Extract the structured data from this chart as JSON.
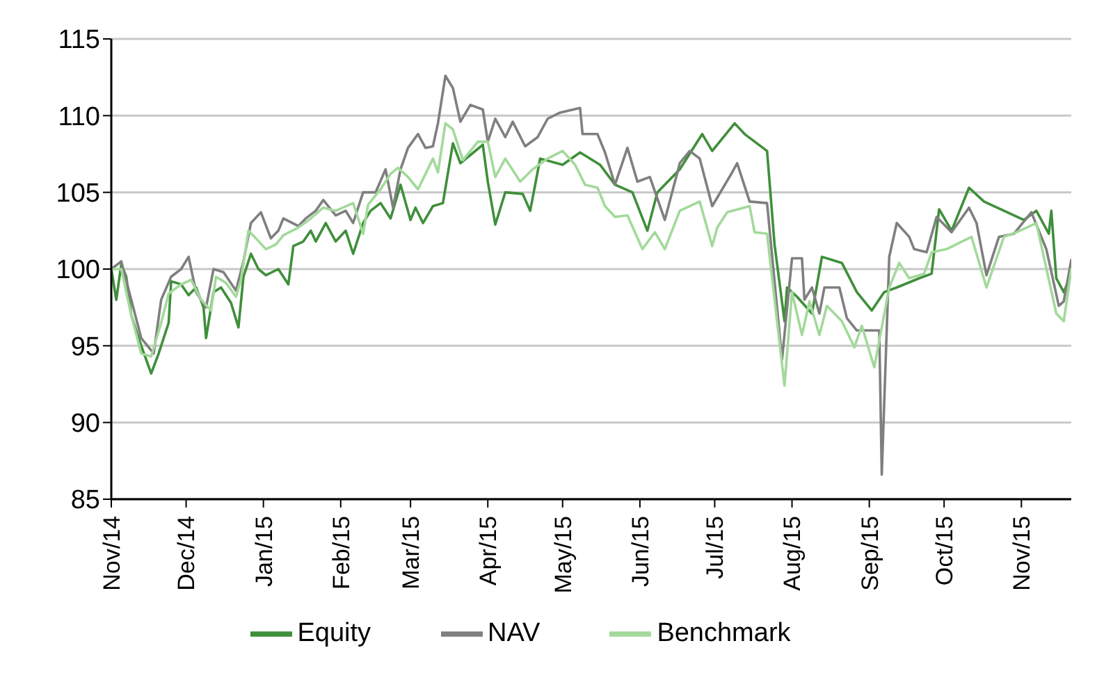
{
  "chart_data": {
    "type": "line",
    "xlim": [
      "2014-11-01",
      "2015-11-21"
    ],
    "xticks": [
      {
        "value": "2014-11-01",
        "label": "Nov/14"
      },
      {
        "value": "2014-12-01",
        "label": "Dec/14"
      },
      {
        "value": "2015-01-01",
        "label": "Jan/15"
      },
      {
        "value": "2015-02-01",
        "label": "Feb/15"
      },
      {
        "value": "2015-03-01",
        "label": "Mar/15"
      },
      {
        "value": "2015-04-01",
        "label": "Apr/15"
      },
      {
        "value": "2015-05-01",
        "label": "May/15"
      },
      {
        "value": "2015-06-01",
        "label": "Jun/15"
      },
      {
        "value": "2015-07-01",
        "label": "Jul/15"
      },
      {
        "value": "2015-08-01",
        "label": "Aug/15"
      },
      {
        "value": "2015-09-01",
        "label": "Sep/15"
      },
      {
        "value": "2015-10-01",
        "label": "Oct/15"
      },
      {
        "value": "2015-11-01",
        "label": "Nov/15"
      }
    ],
    "ylim": [
      85,
      115
    ],
    "yticks": [
      85,
      90,
      95,
      100,
      105,
      110,
      115
    ],
    "grid": "y",
    "legend": "bottom",
    "series": [
      {
        "name": "Equity",
        "color": "#3f8f3a",
        "x": [
          "2014-11-01",
          "2014-11-03",
          "2014-11-05",
          "2014-11-07",
          "2014-11-09",
          "2014-11-13",
          "2014-11-17",
          "2014-11-20",
          "2014-11-24",
          "2014-11-25",
          "2014-11-29",
          "2014-12-02",
          "2014-12-05",
          "2014-12-08",
          "2014-12-09",
          "2014-12-12",
          "2014-12-15",
          "2014-12-19",
          "2014-12-22",
          "2014-12-24",
          "2014-12-27",
          "2014-12-30",
          "2015-01-02",
          "2015-01-07",
          "2015-01-11",
          "2015-01-13",
          "2015-01-17",
          "2015-01-20",
          "2015-01-22",
          "2015-01-26",
          "2015-01-30",
          "2015-02-03",
          "2015-02-06",
          "2015-02-10",
          "2015-02-13",
          "2015-02-17",
          "2015-02-21",
          "2015-02-25",
          "2015-03-01",
          "2015-03-03",
          "2015-03-06",
          "2015-03-10",
          "2015-03-14",
          "2015-03-18",
          "2015-03-21",
          "2015-03-30",
          "2015-04-01",
          "2015-04-04",
          "2015-04-08",
          "2015-04-15",
          "2015-04-18",
          "2015-04-22",
          "2015-05-01",
          "2015-05-08",
          "2015-05-16",
          "2015-05-22",
          "2015-05-29",
          "2015-06-04",
          "2015-06-08",
          "2015-06-17",
          "2015-06-26",
          "2015-06-30",
          "2015-07-09",
          "2015-07-13",
          "2015-07-22",
          "2015-07-25",
          "2015-07-29",
          "2015-07-30",
          "2015-08-03",
          "2015-08-09",
          "2015-08-13",
          "2015-08-21",
          "2015-08-27",
          "2015-09-02",
          "2015-09-07",
          "2015-09-12",
          "2015-09-21",
          "2015-09-26",
          "2015-09-29",
          "2015-10-04",
          "2015-10-11",
          "2015-10-17",
          "2015-10-25",
          "2015-11-02",
          "2015-11-07",
          "2015-11-12",
          "2015-11-13",
          "2015-11-15",
          "2015-11-18",
          "2015-11-21"
        ],
        "values": [
          100,
          98,
          100.3,
          99.5,
          97,
          95,
          93.2,
          94.5,
          96.5,
          99.2,
          99,
          98.3,
          98.8,
          97.5,
          95.5,
          98.5,
          98.8,
          97.8,
          96.2,
          99.5,
          101,
          100,
          99.6,
          100,
          99,
          101.5,
          101.8,
          102.5,
          101.8,
          103,
          101.8,
          102.5,
          101,
          103,
          103.8,
          104.3,
          103.3,
          105.5,
          103.2,
          104,
          103,
          104.1,
          104.3,
          108.2,
          106.9,
          108.1,
          105.7,
          102.9,
          105,
          104.9,
          103.8,
          107.2,
          106.8,
          107.6,
          106.8,
          105.5,
          105,
          102.5,
          105,
          106.5,
          108.8,
          107.7,
          109.5,
          108.8,
          107.7,
          101.6,
          96.6,
          98.8,
          98.2,
          97.1,
          100.8,
          100.4,
          98.5,
          97.3,
          98.5,
          98.8,
          99.4,
          99.7,
          103.9,
          102.5,
          105.3,
          104.4,
          103.8,
          103.2,
          103.8,
          102.3,
          103.8,
          99.4,
          98.5,
          99.7
        ]
      },
      {
        "name": "NAV",
        "color": "#7f7f7f",
        "x": [
          "2014-11-01",
          "2014-11-05",
          "2014-11-13",
          "2014-11-18",
          "2014-11-21",
          "2014-11-25",
          "2014-11-29",
          "2014-12-02",
          "2014-12-05",
          "2014-12-09",
          "2014-12-12",
          "2014-12-16",
          "2014-12-21",
          "2014-12-24",
          "2014-12-27",
          "2014-12-31",
          "2015-01-04",
          "2015-01-07",
          "2015-01-09",
          "2015-01-15",
          "2015-01-18",
          "2015-01-22",
          "2015-01-25",
          "2015-01-30",
          "2015-02-03",
          "2015-02-06",
          "2015-02-10",
          "2015-02-15",
          "2015-02-19",
          "2015-02-22",
          "2015-02-25",
          "2015-02-28",
          "2015-03-04",
          "2015-03-07",
          "2015-03-10",
          "2015-03-12",
          "2015-03-15",
          "2015-03-18",
          "2015-03-21",
          "2015-03-25",
          "2015-03-30",
          "2015-04-01",
          "2015-04-04",
          "2015-04-08",
          "2015-04-11",
          "2015-04-16",
          "2015-04-21",
          "2015-04-25",
          "2015-04-30",
          "2015-05-08",
          "2015-05-09",
          "2015-05-15",
          "2015-05-18",
          "2015-05-22",
          "2015-05-27",
          "2015-05-31",
          "2015-06-05",
          "2015-06-11",
          "2015-06-17",
          "2015-06-21",
          "2015-06-25",
          "2015-06-30",
          "2015-07-08",
          "2015-07-10",
          "2015-07-15",
          "2015-07-22",
          "2015-07-28",
          "2015-08-01",
          "2015-08-05",
          "2015-08-06",
          "2015-08-09",
          "2015-08-12",
          "2015-08-14",
          "2015-08-20",
          "2015-08-23",
          "2015-08-27",
          "2015-09-05",
          "2015-09-06",
          "2015-09-09",
          "2015-09-12",
          "2015-09-17",
          "2015-09-19",
          "2015-09-24",
          "2015-09-28",
          "2015-10-04",
          "2015-10-11",
          "2015-10-14",
          "2015-10-18",
          "2015-10-23",
          "2015-10-29",
          "2015-11-05",
          "2015-11-11",
          "2015-11-16",
          "2015-11-18",
          "2015-11-21"
        ],
        "values": [
          100,
          100.5,
          95.5,
          94.5,
          98,
          99.5,
          100,
          100.8,
          98.5,
          97.5,
          100,
          99.8,
          98.6,
          100.5,
          103,
          103.7,
          102,
          102.5,
          103.3,
          102.8,
          103.3,
          103.8,
          104.5,
          103.5,
          103.8,
          103,
          105,
          105,
          106.5,
          104,
          106.5,
          107.9,
          108.8,
          107.9,
          108,
          109.5,
          112.6,
          111.8,
          109.6,
          110.7,
          110.4,
          108.3,
          109.8,
          108.6,
          109.6,
          108,
          108.6,
          109.8,
          110.2,
          110.5,
          108.8,
          108.8,
          107.6,
          105.5,
          107.9,
          105.7,
          106,
          103.2,
          106.9,
          107.7,
          107.2,
          104.1,
          106.3,
          106.9,
          104.4,
          104.3,
          94.1,
          100.7,
          100.7,
          98,
          98.8,
          97.1,
          98.8,
          98.8,
          96.8,
          96,
          96,
          86.6,
          100.8,
          103,
          102.1,
          101.3,
          101.1,
          103.4,
          102.4,
          104,
          103,
          99.6,
          102.1,
          102.3,
          103.7,
          101.3,
          97.6,
          97.9,
          100.6
        ]
      },
      {
        "name": "Benchmark",
        "color": "#a3d99b",
        "x": [
          "2014-11-01",
          "2014-11-05",
          "2014-11-09",
          "2014-11-13",
          "2014-11-17",
          "2014-11-21",
          "2014-11-24",
          "2014-11-29",
          "2014-12-03",
          "2014-12-07",
          "2014-12-11",
          "2014-12-13",
          "2014-12-17",
          "2014-12-21",
          "2014-12-23",
          "2014-12-26",
          "2014-12-29",
          "2015-01-02",
          "2015-01-06",
          "2015-01-09",
          "2015-01-15",
          "2015-01-20",
          "2015-01-25",
          "2015-01-30",
          "2015-02-06",
          "2015-02-10",
          "2015-02-12",
          "2015-02-17",
          "2015-02-21",
          "2015-02-24",
          "2015-02-28",
          "2015-03-04",
          "2015-03-10",
          "2015-03-12",
          "2015-03-15",
          "2015-03-18",
          "2015-03-22",
          "2015-03-28",
          "2015-04-01",
          "2015-04-04",
          "2015-04-08",
          "2015-04-14",
          "2015-04-19",
          "2015-04-25",
          "2015-05-01",
          "2015-05-06",
          "2015-05-10",
          "2015-05-15",
          "2015-05-18",
          "2015-05-22",
          "2015-05-27",
          "2015-06-02",
          "2015-06-07",
          "2015-06-11",
          "2015-06-17",
          "2015-06-25",
          "2015-06-30",
          "2015-07-02",
          "2015-07-06",
          "2015-07-15",
          "2015-07-17",
          "2015-07-22",
          "2015-07-26",
          "2015-07-29",
          "2015-08-01",
          "2015-08-05",
          "2015-08-08",
          "2015-08-12",
          "2015-08-15",
          "2015-08-21",
          "2015-08-26",
          "2015-08-29",
          "2015-09-03",
          "2015-09-09",
          "2015-09-13",
          "2015-09-17",
          "2015-09-23",
          "2015-09-26",
          "2015-10-02",
          "2015-10-12",
          "2015-10-18",
          "2015-10-25",
          "2015-10-30",
          "2015-11-07",
          "2015-11-15",
          "2015-11-18",
          "2015-11-21"
        ],
        "values": [
          100,
          100,
          97,
          94.5,
          94.3,
          96.5,
          98.4,
          99,
          99.3,
          98,
          97.3,
          99.5,
          99.1,
          98.2,
          99.3,
          102.5,
          102,
          101.3,
          101.6,
          102.2,
          102.7,
          103.3,
          104,
          103.8,
          104.3,
          102.3,
          104.2,
          105.2,
          106.2,
          106.6,
          106,
          105.2,
          107.2,
          106.3,
          109.5,
          109.1,
          107.1,
          108.3,
          108.3,
          106,
          107.2,
          105.7,
          106.5,
          107.2,
          107.7,
          106.8,
          105.5,
          105.3,
          104.1,
          103.4,
          103.5,
          101.3,
          102.4,
          101.3,
          103.8,
          104.4,
          101.5,
          102.7,
          103.7,
          104.1,
          102.4,
          102.3,
          96.6,
          92.4,
          98.5,
          95.7,
          97.9,
          95.7,
          97.6,
          96.6,
          94.9,
          96.3,
          93.6,
          98.8,
          100.4,
          99.4,
          99.7,
          101.1,
          101.3,
          102.1,
          98.8,
          102.1,
          102.4,
          103,
          97.1,
          96.6,
          100
        ]
      }
    ]
  }
}
